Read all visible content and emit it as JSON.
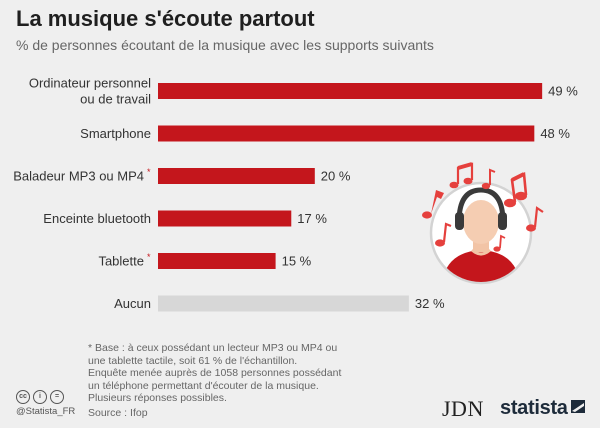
{
  "header": {
    "title": "La musique s'écoute partout",
    "subtitle": "% de personnes écoutant de la musique avec les supports suivants"
  },
  "colors": {
    "bar": "#c4161c",
    "bar_none": "#d7d7d7",
    "accent": "#c4161c"
  },
  "chart_data": {
    "type": "bar",
    "orientation": "horizontal",
    "categories": [
      "Ordinateur personnel\nou de travail",
      "Smartphone",
      "Baladeur MP3 ou MP4",
      "Enceinte bluetooth",
      "Tablette",
      "Aucun"
    ],
    "category_marks": [
      "",
      "",
      "*",
      "",
      "*",
      ""
    ],
    "values": [
      49,
      48,
      20,
      17,
      15,
      32
    ],
    "value_labels": [
      "49 %",
      "48 %",
      "20 %",
      "17 %",
      "15 %",
      "32 %"
    ],
    "highlight": [
      true,
      true,
      true,
      true,
      true,
      false
    ],
    "unit": "%",
    "xlim": [
      0,
      50
    ],
    "grid": false,
    "legend": "none"
  },
  "illustration": {
    "icon": "person-with-headphones-icon",
    "notes_icon": "music-notes-icon"
  },
  "footnote": {
    "lines": "* Base : à ceux possédant un lecteur MP3 ou MP4 ou\n   une tablette tactile, soit 61 % de l'échantillon.\nEnquête menée auprès de 1058 personnes possédant\nun téléphone permettant d'écouter de la musique.\nPlusieurs réponses possibles.",
    "source": "Source : Ifop"
  },
  "footer": {
    "handle": "@Statista_FR",
    "licence_icons": [
      "cc",
      "i",
      "="
    ],
    "brand_left": "JDN",
    "brand_right": "statista"
  }
}
